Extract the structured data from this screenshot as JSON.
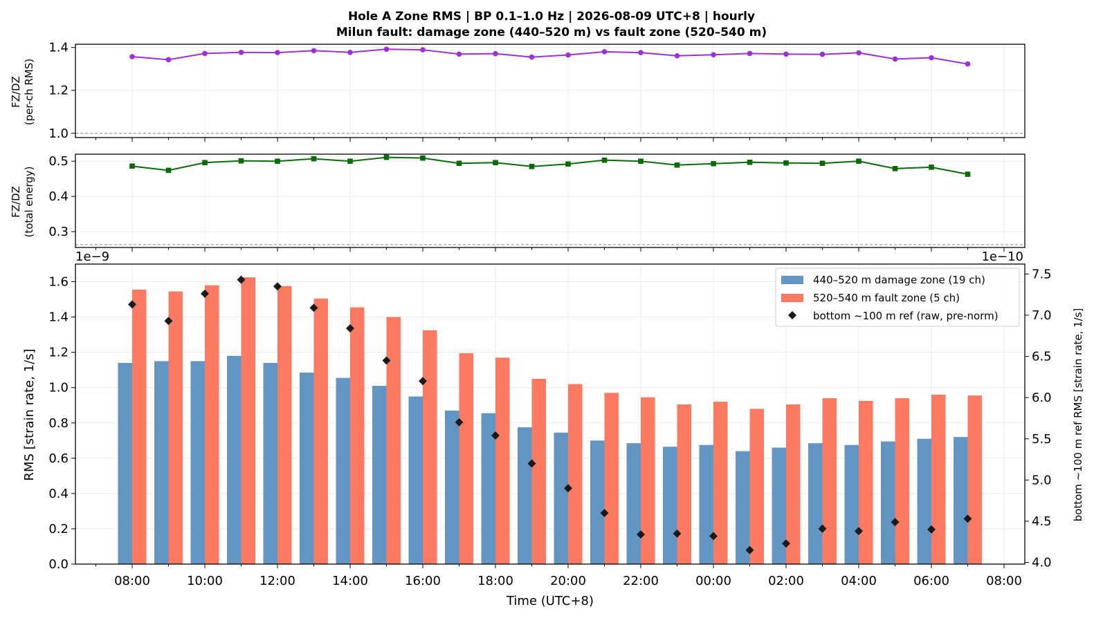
{
  "title_line1": "Hole A Zone RMS  |  BP 0.1–1.0 Hz  |  2026-08-09 UTC+8  |  hourly",
  "title_line2": "Milun fault: damage zone (440–520 m) vs fault zone (520–540 m)",
  "colors": {
    "damage": "#6395c3",
    "fault": "#fd7a62",
    "ratio_rms": "#9b30d8",
    "ratio_energy": "#0a6a0a",
    "ref": "#1a1a1a"
  },
  "chart_data": [
    {
      "type": "line",
      "ylabel_line1": "FZ/DZ",
      "ylabel_line2": "(per-ch RMS)",
      "ylim": [
        0.98,
        1.415
      ],
      "yticks": [
        "1.0",
        "1.2",
        "1.4"
      ],
      "ytick_values": [
        1.0,
        1.2,
        1.4
      ],
      "reference_line": 1.0,
      "x": [
        "08:00",
        "09:00",
        "10:00",
        "11:00",
        "12:00",
        "13:00",
        "14:00",
        "15:00",
        "16:00",
        "17:00",
        "18:00",
        "19:00",
        "20:00",
        "21:00",
        "22:00",
        "23:00",
        "00:00",
        "01:00",
        "02:00",
        "03:00",
        "04:00",
        "05:00",
        "06:00",
        "07:00"
      ],
      "values": [
        1.357,
        1.343,
        1.372,
        1.377,
        1.376,
        1.385,
        1.377,
        1.392,
        1.389,
        1.369,
        1.371,
        1.355,
        1.365,
        1.38,
        1.376,
        1.361,
        1.366,
        1.372,
        1.369,
        1.368,
        1.375,
        1.346,
        1.352,
        1.323
      ],
      "grid": true
    },
    {
      "type": "line",
      "ylabel_line1": "FZ/DZ",
      "ylabel_line2": "(total energy)",
      "ylim": [
        0.255,
        0.52
      ],
      "yticks": [
        "0.3",
        "0.4",
        "0.5"
      ],
      "ytick_values": [
        0.3,
        0.4,
        0.5
      ],
      "reference_line": 0.263,
      "x": [
        "08:00",
        "09:00",
        "10:00",
        "11:00",
        "12:00",
        "13:00",
        "14:00",
        "15:00",
        "16:00",
        "17:00",
        "18:00",
        "19:00",
        "20:00",
        "21:00",
        "22:00",
        "23:00",
        "00:00",
        "01:00",
        "02:00",
        "03:00",
        "04:00",
        "05:00",
        "06:00",
        "07:00"
      ],
      "values": [
        0.486,
        0.474,
        0.496,
        0.501,
        0.5,
        0.507,
        0.5,
        0.511,
        0.509,
        0.494,
        0.496,
        0.485,
        0.492,
        0.503,
        0.5,
        0.489,
        0.493,
        0.497,
        0.495,
        0.494,
        0.5,
        0.479,
        0.483,
        0.463
      ],
      "grid": true
    },
    {
      "type": "bar",
      "ylabel": "RMS  [strain rate, 1/s]",
      "y_offset_label": "1e−9",
      "ylim": [
        0,
        1.7
      ],
      "yticks": [
        "0.0",
        "0.2",
        "0.4",
        "0.6",
        "0.8",
        "1.0",
        "1.2",
        "1.4",
        "1.6"
      ],
      "ytick_values": [
        0,
        0.2,
        0.4,
        0.6,
        0.8,
        1.0,
        1.2,
        1.4,
        1.6
      ],
      "y2label": "bottom ~100 m ref RMS  [strain rate, 1/s]",
      "y2_offset_label": "1e−10",
      "y2lim": [
        3.98,
        7.62
      ],
      "y2ticks": [
        "4.0",
        "4.5",
        "5.0",
        "5.5",
        "6.0",
        "6.5",
        "7.0",
        "7.5"
      ],
      "y2tick_values": [
        4.0,
        4.5,
        5.0,
        5.5,
        6.0,
        6.5,
        7.0,
        7.5
      ],
      "xlabel": "Time (UTC+8)",
      "xticks": [
        "08:00",
        "10:00",
        "12:00",
        "14:00",
        "16:00",
        "18:00",
        "20:00",
        "22:00",
        "00:00",
        "02:00",
        "04:00",
        "06:00",
        "08:00"
      ],
      "categories": [
        "08:00",
        "09:00",
        "10:00",
        "11:00",
        "12:00",
        "13:00",
        "14:00",
        "15:00",
        "16:00",
        "17:00",
        "18:00",
        "19:00",
        "20:00",
        "21:00",
        "22:00",
        "23:00",
        "00:00",
        "01:00",
        "02:00",
        "03:00",
        "04:00",
        "05:00",
        "06:00",
        "07:00"
      ],
      "series": [
        {
          "name": "440–520 m  damage zone (19 ch)",
          "axis": "left",
          "values": [
            1.14,
            1.15,
            1.15,
            1.18,
            1.14,
            1.085,
            1.055,
            1.01,
            0.95,
            0.87,
            0.855,
            0.775,
            0.745,
            0.7,
            0.685,
            0.665,
            0.675,
            0.64,
            0.66,
            0.685,
            0.675,
            0.695,
            0.71,
            0.72
          ]
        },
        {
          "name": "520–540 m  fault zone (5 ch)",
          "axis": "left",
          "values": [
            1.555,
            1.545,
            1.58,
            1.625,
            1.575,
            1.505,
            1.455,
            1.4,
            1.325,
            1.195,
            1.17,
            1.05,
            1.02,
            0.97,
            0.945,
            0.905,
            0.92,
            0.88,
            0.905,
            0.94,
            0.925,
            0.94,
            0.96,
            0.955
          ]
        },
        {
          "name": "bottom ~100 m ref (raw, pre-norm)",
          "axis": "right",
          "marker": "diamond",
          "values": [
            7.13,
            6.93,
            7.26,
            7.43,
            7.35,
            7.09,
            6.84,
            6.45,
            6.2,
            5.7,
            5.54,
            5.2,
            4.9,
            4.6,
            4.34,
            4.35,
            4.32,
            4.15,
            4.23,
            4.41,
            4.38,
            4.49,
            4.4,
            4.53
          ]
        }
      ],
      "legend_position": "upper right",
      "grid": true
    }
  ]
}
